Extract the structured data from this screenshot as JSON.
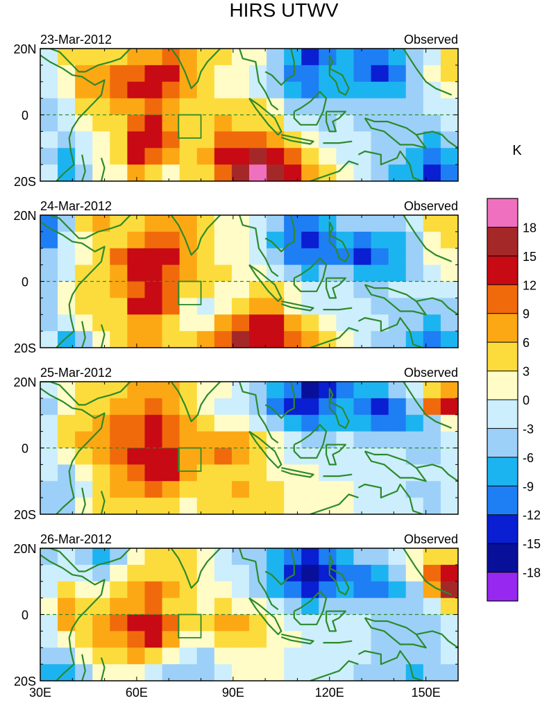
{
  "chart_data": {
    "type": "heatmap",
    "title": "HIRS UTWV",
    "x_ticks": [
      {
        "value": 30,
        "label": "30E"
      },
      {
        "value": 60,
        "label": "60E"
      },
      {
        "value": 90,
        "label": "90E"
      },
      {
        "value": 120,
        "label": "120E"
      },
      {
        "value": 150,
        "label": "150E"
      }
    ],
    "y_ticks": [
      {
        "value": 20,
        "label": "20N"
      },
      {
        "value": 0,
        "label": "0"
      },
      {
        "value": -20,
        "label": "20S"
      }
    ],
    "xlim": [
      30,
      160
    ],
    "ylim": [
      -20,
      20
    ],
    "colorbar": {
      "unit": "K",
      "levels": [
        18,
        15,
        12,
        9,
        6,
        3,
        0,
        -3,
        -6,
        -9,
        -12,
        -15,
        -18
      ],
      "level_labels": [
        "18",
        "15",
        "12",
        "9",
        "6",
        "3",
        "0",
        "-3",
        "-6",
        "-9",
        "-12",
        "-15",
        "-18"
      ],
      "colors": [
        "#f070c0",
        "#a52828",
        "#c80a14",
        "#f06a0c",
        "#fca814",
        "#fcdc3c",
        "#fffcc8",
        "#cdeefc",
        "#9cd0f8",
        "#1cb4f0",
        "#1e7ef4",
        "#0a1ed2",
        "#08109a",
        "#9628f0"
      ]
    },
    "panels": [
      {
        "date": "23-Mar-2012",
        "label": "Observed",
        "grid": [
          [
            -1,
            3,
            5,
            5,
            4,
            6,
            6,
            9,
            6,
            5,
            3,
            2,
            0,
            -5,
            -9,
            -14,
            -12,
            -9,
            -10,
            -12,
            -9,
            -5,
            -3,
            4
          ],
          [
            -2,
            2,
            6,
            8,
            9,
            11,
            13,
            12,
            7,
            4,
            2,
            1,
            -2,
            -6,
            -10,
            -12,
            -9,
            -8,
            -10,
            -13,
            -10,
            -5,
            0,
            3
          ],
          [
            -3,
            1,
            6,
            8,
            11,
            12,
            12,
            9,
            6,
            5,
            2,
            0,
            -2,
            -5,
            -9,
            -10,
            -8,
            -7,
            -8,
            -9,
            -8,
            -6,
            -2,
            1
          ],
          [
            -5,
            -2,
            3,
            5,
            6,
            8,
            9,
            8,
            5,
            4,
            5,
            4,
            4,
            1,
            -4,
            -6,
            -6,
            -4,
            -5,
            -6,
            -6,
            -5,
            -3,
            -1
          ],
          [
            -4,
            -2,
            1,
            3,
            4,
            10,
            12,
            8,
            5,
            4,
            6,
            5,
            5,
            3,
            -1,
            -3,
            -4,
            -3,
            -4,
            -5,
            -6,
            -5,
            -6,
            -3
          ],
          [
            -3,
            -5,
            -1,
            2,
            4,
            12,
            13,
            10,
            4,
            5,
            9,
            11,
            10,
            8,
            4,
            1,
            -2,
            -2,
            -3,
            -5,
            -6,
            -6,
            -8,
            -5
          ],
          [
            -4,
            -7,
            -2,
            1,
            3,
            12,
            11,
            6,
            3,
            6,
            12,
            14,
            17,
            14,
            10,
            4,
            1,
            -1,
            -3,
            -5,
            -6,
            -7,
            -12,
            -8
          ],
          [
            -2,
            -9,
            -5,
            0,
            2,
            7,
            5,
            2,
            3,
            5,
            11,
            15,
            19,
            16,
            12,
            8,
            4,
            2,
            -1,
            -4,
            -7,
            -9,
            -13,
            -10
          ]
        ]
      },
      {
        "date": "24-Mar-2012",
        "label": "Observed",
        "grid": [
          [
            -12,
            -4,
            3,
            6,
            3,
            4,
            6,
            8,
            6,
            4,
            2,
            1,
            -1,
            -6,
            -10,
            -12,
            -9,
            -6,
            -5,
            -5,
            -4,
            -2,
            3,
            5
          ],
          [
            -10,
            -3,
            2,
            4,
            5,
            6,
            9,
            9,
            7,
            4,
            2,
            0,
            -2,
            -7,
            -12,
            -14,
            -10,
            -9,
            -10,
            -9,
            -7,
            -4,
            2,
            4
          ],
          [
            -6,
            -2,
            2,
            4,
            9,
            12,
            13,
            12,
            8,
            5,
            2,
            0,
            -3,
            -6,
            -10,
            -11,
            -10,
            -12,
            -13,
            -12,
            -9,
            -5,
            0,
            2
          ],
          [
            -5,
            -1,
            3,
            5,
            8,
            12,
            14,
            11,
            7,
            5,
            3,
            2,
            1,
            -2,
            -6,
            -7,
            -6,
            -6,
            -8,
            -8,
            -7,
            -4,
            -2,
            0
          ],
          [
            -4,
            2,
            3,
            3,
            6,
            11,
            13,
            10,
            4,
            3,
            1,
            2,
            3,
            4,
            1,
            -2,
            -3,
            -3,
            -4,
            -4,
            -3,
            -2,
            -1,
            -2
          ],
          [
            -6,
            1,
            4,
            3,
            5,
            12,
            12,
            9,
            2,
            -1,
            0,
            4,
            7,
            6,
            2,
            -1,
            -2,
            -3,
            -3,
            -4,
            -5,
            -5,
            -4,
            -6
          ],
          [
            -4,
            -3,
            2,
            3,
            4,
            6,
            7,
            5,
            2,
            2,
            6,
            10,
            13,
            12,
            8,
            3,
            1,
            -1,
            -2,
            -3,
            -4,
            -6,
            -7,
            -6
          ],
          [
            -3,
            -8,
            -4,
            1,
            3,
            6,
            6,
            4,
            4,
            6,
            10,
            17,
            14,
            13,
            10,
            7,
            3,
            0,
            -2,
            -4,
            -5,
            -7,
            -10,
            -8
          ]
        ]
      },
      {
        "date": "25-Mar-2012",
        "label": "Observed",
        "grid": [
          [
            -3,
            1,
            3,
            4,
            5,
            6,
            7,
            6,
            4,
            2,
            0,
            -3,
            -6,
            -9,
            -12,
            -16,
            -13,
            -10,
            -8,
            -8,
            -6,
            -1,
            5,
            7
          ],
          [
            -4,
            2,
            3,
            5,
            7,
            8,
            9,
            6,
            3,
            1,
            -1,
            -3,
            -5,
            -10,
            -13,
            -14,
            -11,
            -9,
            -10,
            -13,
            -11,
            -6,
            9,
            12
          ],
          [
            -2,
            4,
            5,
            6,
            9,
            10,
            12,
            9,
            6,
            3,
            2,
            0,
            -3,
            -6,
            -9,
            -10,
            -9,
            -8,
            -9,
            -10,
            -11,
            -9,
            -4,
            1
          ],
          [
            -1,
            3,
            6,
            8,
            9,
            10,
            13,
            11,
            6,
            7,
            8,
            6,
            4,
            1,
            -3,
            -5,
            -4,
            -3,
            -4,
            -5,
            -6,
            -6,
            -5,
            -3
          ],
          [
            -2,
            1,
            5,
            7,
            10,
            13,
            14,
            13,
            8,
            8,
            9,
            6,
            3,
            1,
            -1,
            -3,
            -3,
            -2,
            -2,
            -2,
            -3,
            -4,
            -4,
            -2
          ],
          [
            -3,
            -4,
            2,
            5,
            7,
            11,
            13,
            12,
            6,
            4,
            5,
            5,
            4,
            2,
            1,
            0,
            -1,
            -1,
            -1,
            -2,
            -3,
            -3,
            -3,
            -2
          ],
          [
            -5,
            -6,
            -1,
            3,
            6,
            8,
            9,
            8,
            4,
            3,
            5,
            6,
            4,
            3,
            2,
            1,
            0,
            0,
            -1,
            -2,
            -3,
            -4,
            -4,
            -3
          ],
          [
            -6,
            -4,
            1,
            3,
            3,
            4,
            5,
            3,
            2,
            3,
            4,
            5,
            4,
            3,
            2,
            1,
            1,
            0,
            -1,
            -2,
            -2,
            -3,
            -4,
            -3
          ]
        ]
      },
      {
        "date": "26-Mar-2012",
        "label": "Observed",
        "grid": [
          [
            -5,
            -3,
            -6,
            -8,
            -5,
            1,
            4,
            5,
            3,
            0,
            -2,
            -4,
            -6,
            -8,
            -11,
            -13,
            -12,
            -9,
            -6,
            -4,
            -3,
            0,
            3,
            4
          ],
          [
            -3,
            -2,
            -3,
            -5,
            1,
            3,
            5,
            4,
            3,
            1,
            -1,
            -3,
            -6,
            -9,
            -13,
            -16,
            -13,
            -11,
            -10,
            -9,
            -5,
            0,
            11,
            12
          ],
          [
            -1,
            4,
            0,
            2,
            5,
            7,
            9,
            7,
            3,
            1,
            0,
            -2,
            -4,
            -7,
            -11,
            -14,
            -11,
            -9,
            -10,
            -10,
            -8,
            -4,
            6,
            15
          ],
          [
            0,
            7,
            3,
            5,
            6,
            8,
            9,
            5,
            3,
            2,
            3,
            2,
            1,
            -2,
            -6,
            -7,
            -6,
            -5,
            -5,
            -6,
            -6,
            -5,
            -2,
            3
          ],
          [
            -1,
            6,
            5,
            7,
            9,
            12,
            14,
            10,
            4,
            4,
            6,
            6,
            5,
            2,
            -1,
            -3,
            -3,
            -2,
            -3,
            -4,
            -5,
            -5,
            -4,
            -1
          ],
          [
            -3,
            1,
            4,
            6,
            8,
            11,
            12,
            8,
            2,
            1,
            3,
            4,
            3,
            2,
            0,
            -1,
            -2,
            -2,
            -3,
            -4,
            -4,
            -5,
            -4,
            -2
          ],
          [
            -6,
            -5,
            2,
            4,
            5,
            6,
            4,
            0,
            -3,
            -4,
            0,
            2,
            2,
            1,
            -1,
            -2,
            -2,
            -3,
            -3,
            -4,
            -4,
            -6,
            -5,
            -3
          ],
          [
            -7,
            -9,
            -4,
            1,
            2,
            1,
            -1,
            -4,
            -6,
            -5,
            -2,
            0,
            1,
            0,
            -2,
            -3,
            -3,
            -3,
            -4,
            -5,
            -5,
            -7,
            -6,
            -4
          ]
        ]
      }
    ]
  }
}
